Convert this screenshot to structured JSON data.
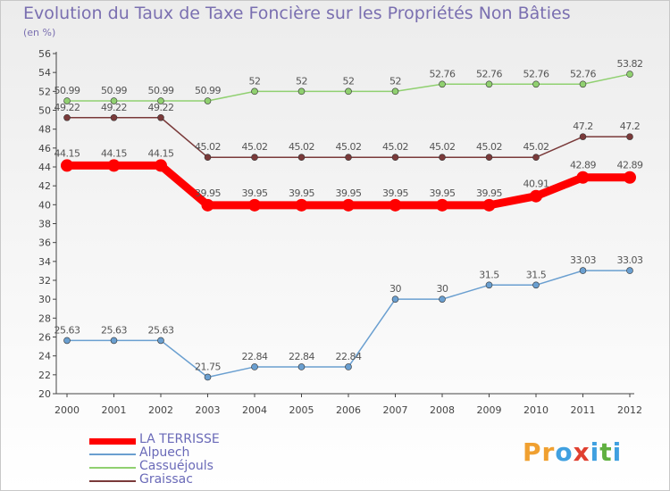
{
  "title": "Evolution du Taux de Taxe Foncière sur les Propriétés Non Bâties",
  "subtitle": "(en %)",
  "logo": {
    "letters": [
      "P",
      "r",
      "o",
      "x",
      "i",
      "t",
      "i"
    ],
    "colors": [
      "#f0a030",
      "#f0a030",
      "#40a0e0",
      "#e04030",
      "#40a0e0",
      "#60b040",
      "#40a0e0"
    ]
  },
  "chart_data": {
    "type": "line",
    "title": "Evolution du Taux de Taxe Foncière sur les Propriétés Non Bâties",
    "ylabel": "(en %)",
    "xlabel": "",
    "categories": [
      "2000",
      "2001",
      "2002",
      "2003",
      "2004",
      "2005",
      "2006",
      "2007",
      "2008",
      "2009",
      "2010",
      "2011",
      "2012"
    ],
    "ylim": [
      20,
      56
    ],
    "yticks": [
      "20",
      "22",
      "24",
      "26",
      "28",
      "30",
      "32",
      "34",
      "36",
      "38",
      "40",
      "42",
      "44",
      "46",
      "48",
      "50",
      "52",
      "54",
      "56"
    ],
    "series": [
      {
        "name": "LA TERRISSE",
        "color": "#ff0000",
        "values": [
          44.15,
          44.15,
          44.15,
          39.95,
          39.95,
          39.95,
          39.95,
          39.95,
          39.95,
          39.95,
          40.91,
          42.89,
          42.89
        ],
        "labels": [
          "44.15",
          "44.15",
          "44.15",
          "39.95",
          "39.95",
          "39.95",
          "39.95",
          "39.95",
          "39.95",
          "39.95",
          "40.91",
          "42.89",
          "42.89"
        ]
      },
      {
        "name": "Alpuech",
        "color": "#6a9fd0",
        "values": [
          25.63,
          25.63,
          25.63,
          21.75,
          22.84,
          22.84,
          22.84,
          30,
          30,
          31.5,
          31.5,
          33.03,
          33.03
        ],
        "labels": [
          "25.63",
          "25.63",
          "25.63",
          "21.75",
          "22.84",
          "22.84",
          "22.84",
          "30",
          "30",
          "31.5",
          "31.5",
          "33.03",
          "33.03"
        ]
      },
      {
        "name": "Cassuéjouls",
        "color": "#90d070",
        "values": [
          50.99,
          50.99,
          50.99,
          50.99,
          52,
          52,
          52,
          52,
          52.76,
          52.76,
          52.76,
          52.76,
          53.82
        ],
        "labels": [
          "50.99",
          "50.99",
          "50.99",
          "50.99",
          "52",
          "52",
          "52",
          "52",
          "52.76",
          "52.76",
          "52.76",
          "52.76",
          "53.82"
        ]
      },
      {
        "name": "Graissac",
        "color": "#7a3a3a",
        "values": [
          49.22,
          49.22,
          49.22,
          45.02,
          45.02,
          45.02,
          45.02,
          45.02,
          45.02,
          45.02,
          45.02,
          47.2,
          47.2
        ],
        "labels": [
          "49.22",
          "49.22",
          "49.22",
          "45.02",
          "45.02",
          "45.02",
          "45.02",
          "45.02",
          "45.02",
          "45.02",
          "45.02",
          "47.2",
          "47.2"
        ]
      }
    ],
    "legend": [
      "LA TERRISSE",
      "Alpuech",
      "Cassuéjouls",
      "Graissac"
    ],
    "legend_position": "bottom-left",
    "grid": false
  }
}
